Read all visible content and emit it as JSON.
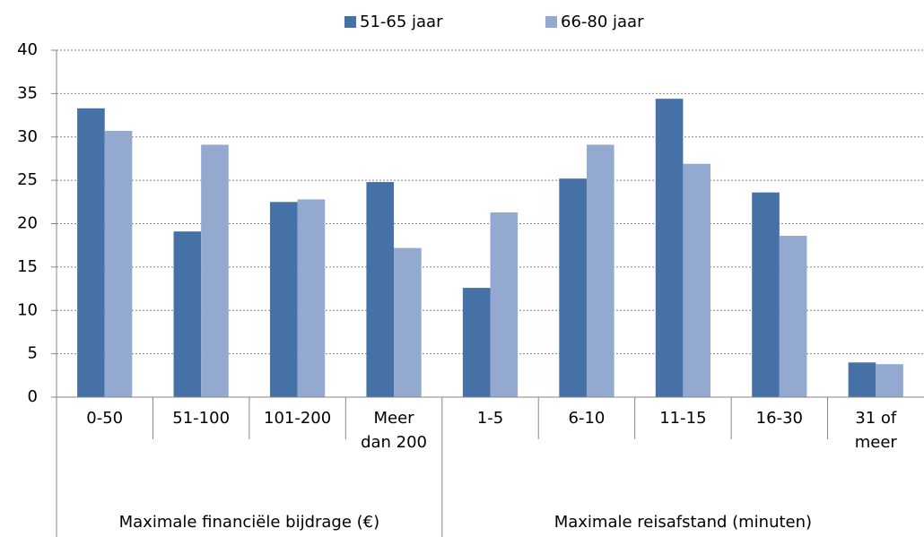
{
  "chart_data": {
    "type": "bar",
    "groups": [
      {
        "name": "Maximale financiële bijdrage (€)",
        "categories": [
          "0-50",
          "51-100",
          "101-200",
          "Meer dan 200"
        ]
      },
      {
        "name": "Maximale reisafstand (minuten)",
        "categories": [
          "1-5",
          "6-10",
          "11-15",
          "16-30",
          "31 of meer"
        ]
      }
    ],
    "series": [
      {
        "name": "51-65 jaar",
        "color": "#4571a7",
        "values": [
          33.3,
          19.1,
          22.5,
          24.8,
          12.6,
          25.2,
          34.4,
          23.6,
          4.0
        ]
      },
      {
        "name": "66-80 jaar",
        "color": "#93a9d0",
        "values": [
          30.7,
          29.1,
          22.8,
          17.2,
          21.3,
          29.1,
          26.9,
          18.6,
          3.8
        ]
      }
    ],
    "ylim": [
      0,
      40
    ],
    "yticks": [
      0,
      5,
      10,
      15,
      20,
      25,
      30,
      35,
      40
    ],
    "grid": true,
    "legend": "top"
  }
}
